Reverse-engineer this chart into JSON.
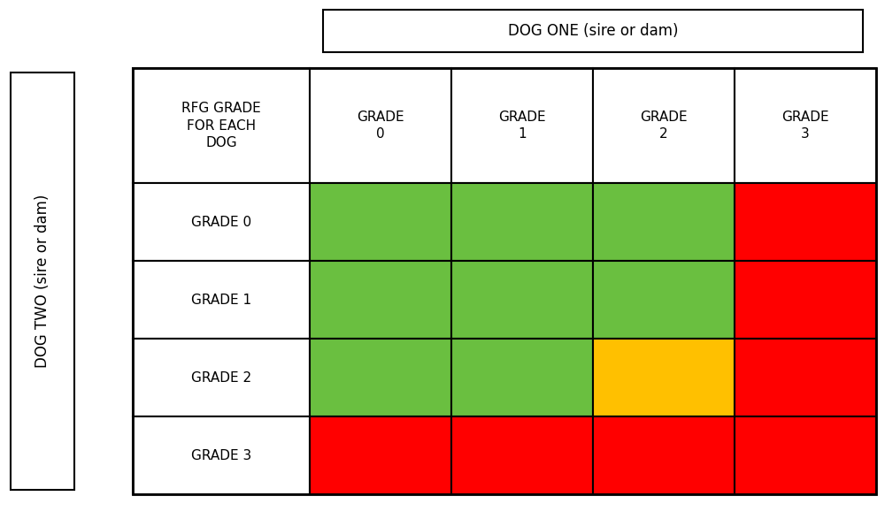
{
  "title_dog_one": "DOG ONE (sire or dam)",
  "title_dog_two": "DOG TWO (sire or dam)",
  "header_col0": "RFG GRADE\nFOR EACH\nDOG",
  "col_headers": [
    "GRADE\n0",
    "GRADE\n1",
    "GRADE\n2",
    "GRADE\n3"
  ],
  "row_headers": [
    "GRADE 0",
    "GRADE 1",
    "GRADE 2",
    "GRADE 3"
  ],
  "cell_colors": [
    [
      "#6abf40",
      "#6abf40",
      "#6abf40",
      "#ff0000"
    ],
    [
      "#6abf40",
      "#6abf40",
      "#6abf40",
      "#ff0000"
    ],
    [
      "#6abf40",
      "#6abf40",
      "#ffc000",
      "#ff0000"
    ],
    [
      "#ff0000",
      "#ff0000",
      "#ff0000",
      "#ff0000"
    ]
  ],
  "bg_color": "#ffffff",
  "text_color": "#000000",
  "border_color": "#000000",
  "font_size": 11,
  "header_font_size": 11
}
